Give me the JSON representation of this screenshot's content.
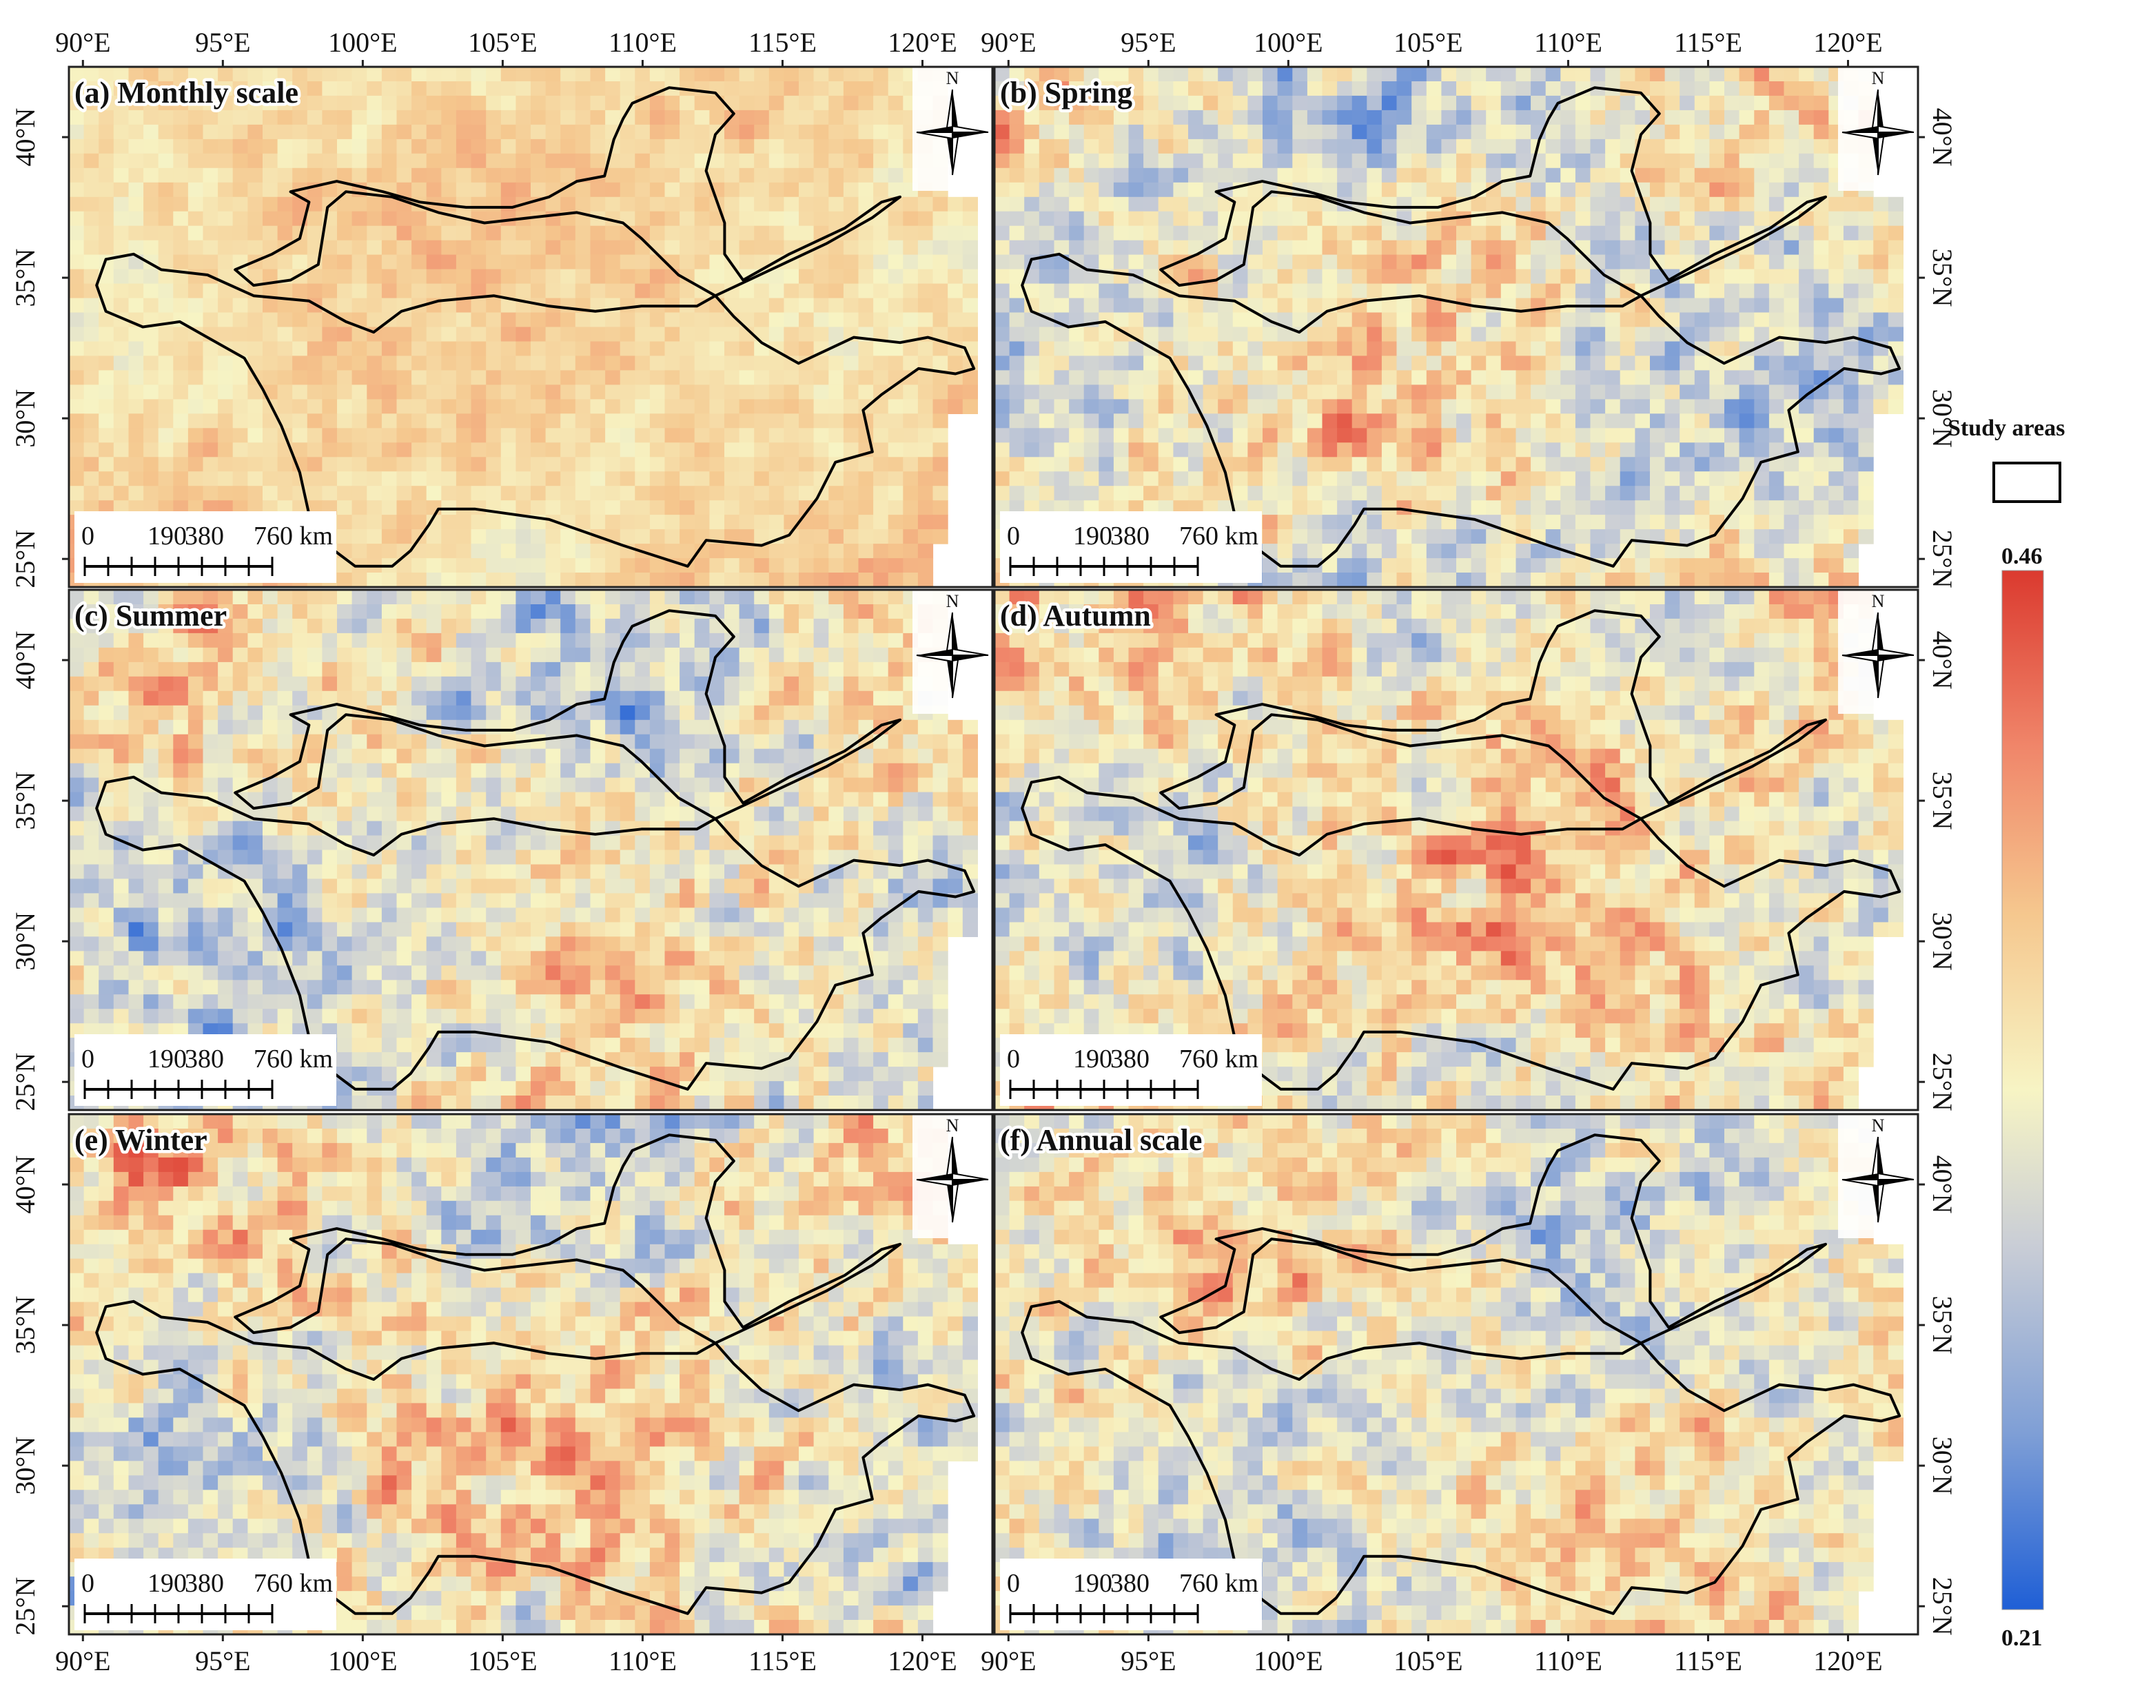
{
  "panels": [
    {
      "title": "(a) Monthly scale",
      "mean": 0.36,
      "spread": 0.035,
      "seed": 11
    },
    {
      "title": "(b) Spring",
      "mean": 0.33,
      "spread": 0.075,
      "seed": 23
    },
    {
      "title": "(c) Summer",
      "mean": 0.33,
      "spread": 0.075,
      "seed": 37
    },
    {
      "title": "(d) Autumn",
      "mean": 0.345,
      "spread": 0.075,
      "seed": 41
    },
    {
      "title": "(e) Winter",
      "mean": 0.34,
      "spread": 0.08,
      "seed": 53
    },
    {
      "title": "(f) Annual scale",
      "mean": 0.335,
      "spread": 0.07,
      "seed": 67
    }
  ],
  "axes": {
    "lon_ticks": [
      "90°E",
      "95°E",
      "100°E",
      "105°E",
      "110°E",
      "115°E",
      "120°E"
    ],
    "lat_ticks": [
      "25°N",
      "30°N",
      "35°N",
      "40°N"
    ],
    "lon_range": [
      89.5,
      122.5
    ],
    "lat_range": [
      24.0,
      42.5
    ]
  },
  "north_arrow": {
    "label": "N",
    "icon": "north-arrow-icon"
  },
  "scale_bar": {
    "labels": [
      "0",
      "190",
      "380",
      "760 km"
    ]
  },
  "legend": {
    "title": "Study areas"
  },
  "colorbar": {
    "max_label": "0.46",
    "min_label": "0.21",
    "min": 0.21,
    "max": 0.46,
    "colors": [
      "#1f5fd6",
      "#7f9fd6",
      "#c9cdd6",
      "#f7f4c4",
      "#f5c78e",
      "#f0866a",
      "#db3a2f"
    ]
  }
}
